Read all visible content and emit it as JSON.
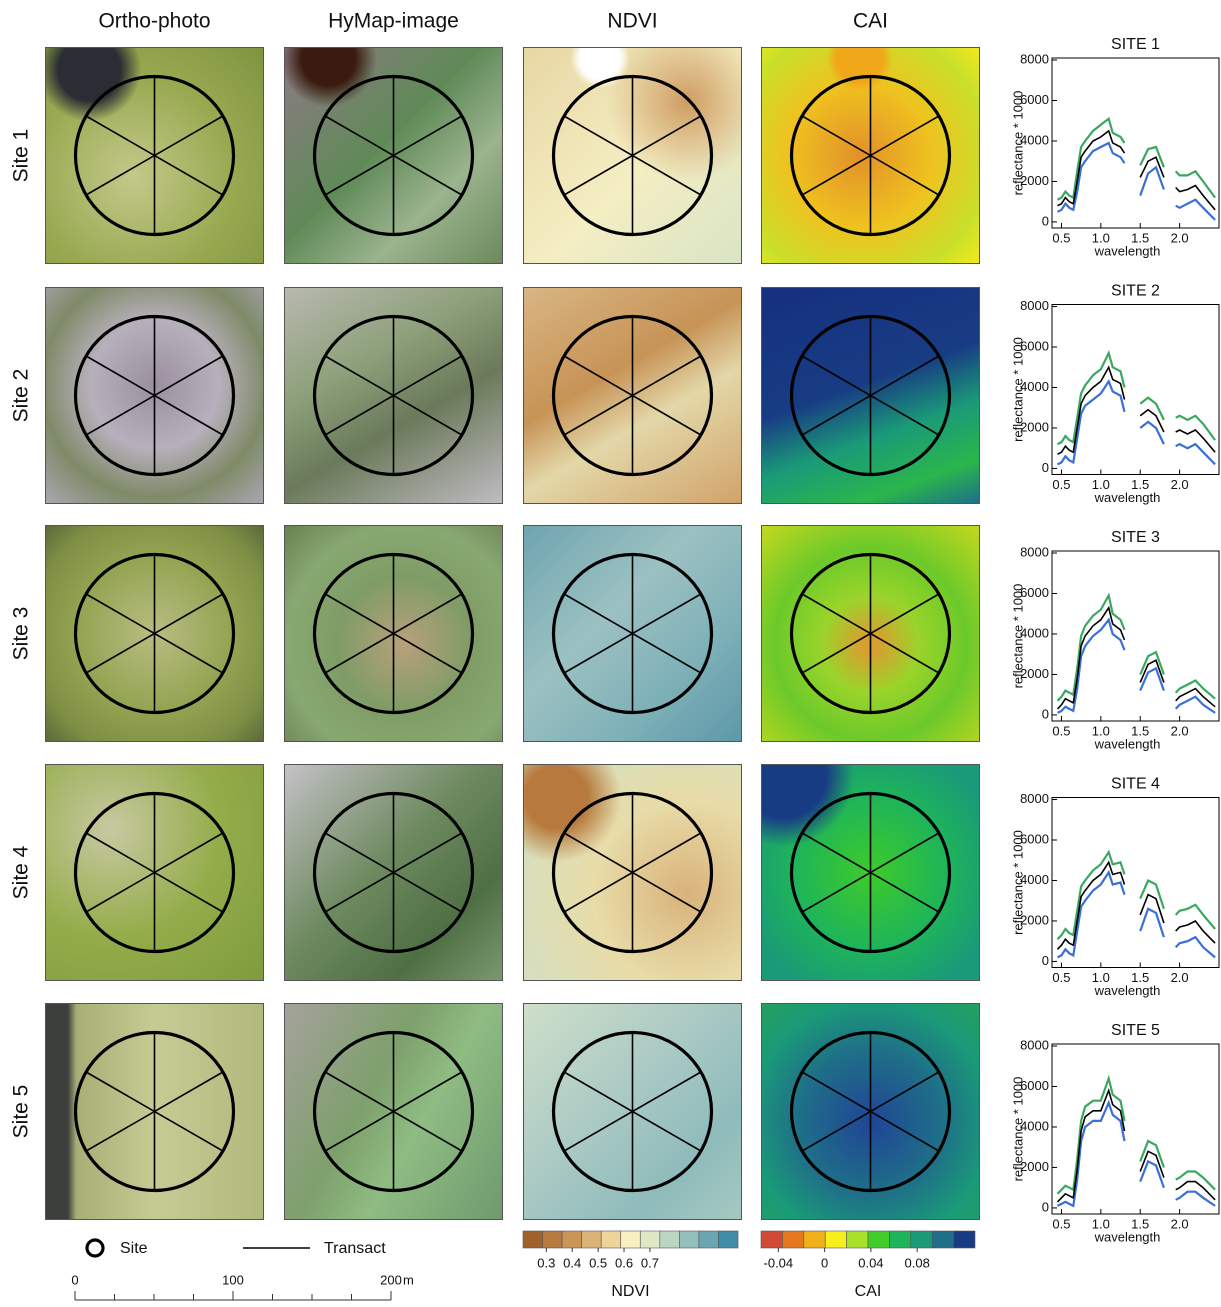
{
  "column_headers": [
    "Ortho-photo",
    "HyMap-image",
    "NDVI",
    "CAI"
  ],
  "row_labels": [
    "Site 1",
    "Site 2",
    "Site 3",
    "Site 4",
    "Site 5"
  ],
  "legend": {
    "site": "Site",
    "transect": "Transact"
  },
  "scale_bar": {
    "lim": [
      0,
      200
    ],
    "ticks": [
      0,
      100,
      200
    ],
    "unit": "m"
  },
  "colorbars": [
    {
      "title": "NDVI",
      "lim": [
        0.21,
        1.04
      ],
      "ticks": [
        0.3,
        0.4,
        0.5,
        0.6,
        0.7
      ],
      "colors": [
        "#a0612a",
        "#b97a3f",
        "#cb9558",
        "#dcb377",
        "#ecd49b",
        "#f7f0bf",
        "#dfe8c3",
        "#bcd5c2",
        "#95bfbd",
        "#6aa6b2",
        "#3f8ea5"
      ]
    },
    {
      "title": "CAI",
      "lim": [
        -0.055,
        0.13
      ],
      "ticks": [
        -0.04,
        0,
        0.04,
        0.08
      ],
      "colors": [
        "#d04a35",
        "#e6781f",
        "#f2b01a",
        "#f7ef1d",
        "#a8e02a",
        "#42cc2a",
        "#1eb45a",
        "#1a9a78",
        "#1f6f88",
        "#183c84"
      ]
    }
  ],
  "chart_data": [
    {
      "type": "line",
      "title": "SITE 1",
      "x_label": "wavelength",
      "y_label": "reflectance * 1000",
      "x": [
        0.45,
        0.5,
        0.55,
        0.6,
        0.65,
        0.7,
        0.75,
        0.8,
        0.9,
        1.0,
        1.1,
        1.15,
        1.25,
        1.3,
        1.4,
        1.5,
        1.6,
        1.7,
        1.8,
        1.9,
        1.95,
        2.0,
        2.1,
        2.2,
        2.3,
        2.45
      ],
      "xlim": [
        0.38,
        2.5
      ],
      "ylim": [
        -300,
        8100
      ],
      "yticks": [
        0,
        2000,
        4000,
        6000,
        8000
      ],
      "xticks": [
        0.5,
        {
          "value": 1,
          "label": "1.0"
        },
        1.5,
        {
          "value": 2,
          "label": "2.0"
        }
      ],
      "series": [
        {
          "color": "#3aa860",
          "values": [
            1100,
            1200,
            1500,
            1300,
            1200,
            2500,
            3700,
            4000,
            4500,
            4800,
            5100,
            4400,
            4200,
            3900,
            null,
            2800,
            3600,
            3700,
            2700,
            null,
            2500,
            2300,
            2300,
            2500,
            2000,
            1200
          ]
        },
        {
          "color": "#3a6fd8",
          "values": [
            500,
            600,
            900,
            700,
            600,
            1500,
            2700,
            3000,
            3500,
            3700,
            3900,
            3400,
            3200,
            2900,
            null,
            1300,
            2400,
            2700,
            1600,
            null,
            800,
            700,
            900,
            1100,
            700,
            100
          ]
        },
        {
          "color": "#000000",
          "values": [
            800,
            900,
            1200,
            1000,
            900,
            2000,
            3200,
            3500,
            4000,
            4200,
            4500,
            3900,
            3700,
            3400,
            null,
            2200,
            3000,
            3200,
            2200,
            null,
            1700,
            1500,
            1600,
            1800,
            1300,
            600
          ]
        }
      ]
    },
    {
      "type": "line",
      "title": "SITE 2",
      "x_label": "wavelength",
      "y_label": "reflectance * 1000",
      "x": [
        0.45,
        0.5,
        0.55,
        0.6,
        0.65,
        0.7,
        0.75,
        0.8,
        0.9,
        1.0,
        1.1,
        1.15,
        1.25,
        1.3,
        1.4,
        1.5,
        1.6,
        1.7,
        1.8,
        1.9,
        1.95,
        2.0,
        2.1,
        2.2,
        2.3,
        2.45
      ],
      "xlim": [
        0.38,
        2.5
      ],
      "ylim": [
        -300,
        8100
      ],
      "yticks": [
        0,
        2000,
        4000,
        6000,
        8000
      ],
      "xticks": [
        0.5,
        {
          "value": 1,
          "label": "1.0"
        },
        1.5,
        {
          "value": 2,
          "label": "2.0"
        }
      ],
      "series": [
        {
          "color": "#3aa860",
          "values": [
            1200,
            1300,
            1600,
            1400,
            1300,
            2500,
            3700,
            4100,
            4600,
            4900,
            5700,
            5000,
            4800,
            4000,
            null,
            3200,
            3500,
            3200,
            2400,
            null,
            2500,
            2600,
            2400,
            2600,
            2200,
            1400
          ]
        },
        {
          "color": "#3a6fd8",
          "values": [
            200,
            300,
            600,
            400,
            300,
            1500,
            2700,
            3100,
            3400,
            3700,
            4300,
            3800,
            3600,
            2800,
            null,
            2000,
            2300,
            2000,
            1200,
            null,
            1100,
            1200,
            1000,
            1200,
            800,
            200
          ]
        },
        {
          "color": "#000000",
          "values": [
            700,
            800,
            1100,
            900,
            800,
            2000,
            3200,
            3600,
            4000,
            4300,
            5000,
            4400,
            4200,
            3400,
            null,
            2600,
            2900,
            2600,
            1800,
            null,
            1800,
            1900,
            1700,
            1900,
            1500,
            800
          ]
        }
      ]
    },
    {
      "type": "line",
      "title": "SITE 3",
      "x_label": "wavelength",
      "y_label": "reflectance * 1000",
      "x": [
        0.45,
        0.5,
        0.55,
        0.6,
        0.65,
        0.7,
        0.75,
        0.8,
        0.9,
        1.0,
        1.1,
        1.15,
        1.25,
        1.3,
        1.4,
        1.5,
        1.6,
        1.7,
        1.8,
        1.9,
        1.95,
        2.0,
        2.1,
        2.2,
        2.3,
        2.45
      ],
      "xlim": [
        0.38,
        2.5
      ],
      "ylim": [
        -300,
        8100
      ],
      "yticks": [
        0,
        2000,
        4000,
        6000,
        8000
      ],
      "xticks": [
        0.5,
        {
          "value": 1,
          "label": "1.0"
        },
        1.5,
        {
          "value": 2,
          "label": "2.0"
        }
      ],
      "series": [
        {
          "color": "#3aa860",
          "values": [
            700,
            900,
            1200,
            1100,
            1000,
            2300,
            3900,
            4400,
            4900,
            5200,
            5900,
            5000,
            4700,
            4200,
            null,
            2000,
            2900,
            3100,
            2000,
            null,
            1100,
            1300,
            1500,
            1700,
            1300,
            800
          ]
        },
        {
          "color": "#3a6fd8",
          "values": [
            100,
            200,
            400,
            300,
            200,
            1300,
            2900,
            3400,
            3900,
            4200,
            4700,
            4000,
            3700,
            3200,
            null,
            1200,
            2100,
            2300,
            1200,
            null,
            300,
            500,
            700,
            900,
            500,
            100
          ]
        },
        {
          "color": "#000000",
          "values": [
            300,
            500,
            800,
            700,
            600,
            1800,
            3400,
            3900,
            4400,
            4700,
            5300,
            4500,
            4200,
            3700,
            null,
            1600,
            2500,
            2700,
            1600,
            null,
            700,
            900,
            1100,
            1300,
            900,
            400
          ]
        }
      ]
    },
    {
      "type": "line",
      "title": "SITE 4",
      "x_label": "wavelength",
      "y_label": "reflectance * 1000",
      "x": [
        0.45,
        0.5,
        0.55,
        0.6,
        0.65,
        0.7,
        0.75,
        0.8,
        0.9,
        1.0,
        1.1,
        1.15,
        1.25,
        1.3,
        1.4,
        1.5,
        1.6,
        1.7,
        1.8,
        1.9,
        1.95,
        2.0,
        2.1,
        2.2,
        2.3,
        2.45
      ],
      "xlim": [
        0.38,
        2.5
      ],
      "ylim": [
        -300,
        8100
      ],
      "yticks": [
        0,
        2000,
        4000,
        6000,
        8000
      ],
      "xticks": [
        0.5,
        {
          "value": 1,
          "label": "1.0"
        },
        1.5,
        {
          "value": 2,
          "label": "2.0"
        }
      ],
      "series": [
        {
          "color": "#3aa860",
          "values": [
            1100,
            1300,
            1600,
            1400,
            1300,
            2500,
            3700,
            4000,
            4500,
            4800,
            5400,
            4800,
            4900,
            4300,
            null,
            3100,
            4000,
            3800,
            2600,
            null,
            2300,
            2500,
            2600,
            2800,
            2300,
            1600
          ]
        },
        {
          "color": "#3a6fd8",
          "values": [
            200,
            300,
            600,
            400,
            300,
            1500,
            2700,
            3000,
            3500,
            3800,
            4400,
            3800,
            3900,
            3300,
            null,
            1500,
            2600,
            2400,
            1200,
            null,
            700,
            900,
            1000,
            1200,
            700,
            200
          ]
        },
        {
          "color": "#000000",
          "values": [
            600,
            800,
            1100,
            900,
            800,
            2000,
            3200,
            3500,
            4000,
            4300,
            4900,
            4300,
            4400,
            3800,
            null,
            2300,
            3300,
            3100,
            1900,
            null,
            1500,
            1700,
            1800,
            2000,
            1500,
            900
          ]
        }
      ]
    },
    {
      "type": "line",
      "title": "SITE 5",
      "x_label": "wavelength",
      "y_label": "reflectance * 1000",
      "x": [
        0.45,
        0.5,
        0.55,
        0.6,
        0.65,
        0.7,
        0.75,
        0.8,
        0.9,
        1.0,
        1.1,
        1.15,
        1.25,
        1.3,
        1.4,
        1.5,
        1.6,
        1.7,
        1.8,
        1.9,
        1.95,
        2.0,
        2.1,
        2.2,
        2.3,
        2.45
      ],
      "xlim": [
        0.38,
        2.5
      ],
      "ylim": [
        -300,
        8100
      ],
      "yticks": [
        0,
        2000,
        4000,
        6000,
        8000
      ],
      "xticks": [
        0.5,
        {
          "value": 1,
          "label": "1.0"
        },
        1.5,
        {
          "value": 2,
          "label": "2.0"
        }
      ],
      "series": [
        {
          "color": "#3aa860",
          "values": [
            700,
            900,
            1100,
            1000,
            900,
            2400,
            4300,
            5000,
            5300,
            5300,
            6400,
            5600,
            5300,
            4300,
            null,
            2300,
            3300,
            3100,
            2000,
            null,
            1400,
            1500,
            1800,
            1800,
            1500,
            900
          ]
        },
        {
          "color": "#3a6fd8",
          "values": [
            100,
            200,
            300,
            200,
            100,
            1400,
            3300,
            4000,
            4300,
            4300,
            5200,
            4600,
            4300,
            3300,
            null,
            1300,
            2300,
            2100,
            1000,
            null,
            400,
            500,
            800,
            800,
            500,
            100
          ]
        },
        {
          "color": "#000000",
          "values": [
            300,
            500,
            700,
            600,
            500,
            1900,
            3800,
            4500,
            4800,
            4800,
            5800,
            5100,
            4800,
            3800,
            null,
            1800,
            2800,
            2600,
            1500,
            null,
            900,
            1000,
            1300,
            1300,
            1000,
            400
          ]
        }
      ]
    }
  ]
}
